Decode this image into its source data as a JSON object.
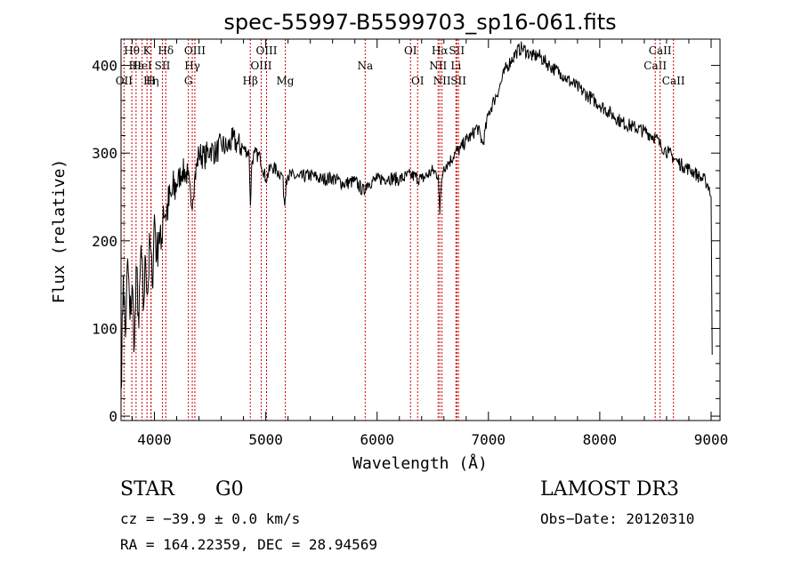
{
  "chart_data": {
    "type": "line",
    "title": "spec-55997-B5599703_sp16-061.fits",
    "xlabel": "Wavelength (Å)",
    "ylabel": "Flux (relative)",
    "xlim": [
      3700,
      9080
    ],
    "ylim": [
      -5,
      430
    ],
    "xticks": [
      4000,
      5000,
      6000,
      7000,
      8000,
      9000
    ],
    "yticks": [
      0,
      100,
      200,
      300,
      400
    ],
    "series": [
      {
        "name": "flux",
        "x": [
          3700,
          3720,
          3740,
          3760,
          3780,
          3800,
          3820,
          3840,
          3860,
          3880,
          3900,
          3920,
          3940,
          3960,
          3980,
          4000,
          4020,
          4040,
          4060,
          4080,
          4100,
          4150,
          4200,
          4250,
          4300,
          4330,
          4360,
          4400,
          4450,
          4500,
          4550,
          4600,
          4650,
          4700,
          4750,
          4800,
          4850,
          4862,
          4875,
          4900,
          4950,
          5000,
          5050,
          5100,
          5150,
          5170,
          5183,
          5200,
          5300,
          5400,
          5500,
          5600,
          5700,
          5800,
          5890,
          5900,
          6000,
          6100,
          6200,
          6300,
          6400,
          6500,
          6550,
          6563,
          6580,
          6600,
          6650,
          6700,
          6750,
          6800,
          6850,
          6900,
          6950,
          7000,
          7050,
          7100,
          7150,
          7200,
          7250,
          7300,
          7350,
          7400,
          7450,
          7500,
          7550,
          7600,
          7650,
          7700,
          7800,
          7900,
          8000,
          8100,
          8200,
          8300,
          8400,
          8500,
          8540,
          8580,
          8620,
          8660,
          8700,
          8750,
          8800,
          8850,
          8900,
          8950,
          8980,
          9000,
          9010
        ],
        "y": [
          30,
          160,
          90,
          180,
          110,
          150,
          80,
          170,
          100,
          195,
          120,
          180,
          140,
          200,
          150,
          230,
          180,
          210,
          190,
          240,
          230,
          250,
          265,
          280,
          275,
          240,
          270,
          300,
          295,
          305,
          300,
          310,
          305,
          315,
          310,
          305,
          300,
          240,
          290,
          300,
          295,
          270,
          285,
          280,
          275,
          240,
          270,
          275,
          272,
          275,
          270,
          272,
          265,
          268,
          255,
          265,
          270,
          272,
          270,
          275,
          270,
          280,
          275,
          230,
          270,
          285,
          290,
          300,
          305,
          315,
          320,
          330,
          310,
          345,
          360,
          375,
          395,
          405,
          415,
          420,
          415,
          410,
          412,
          405,
          400,
          395,
          392,
          385,
          375,
          365,
          355,
          345,
          335,
          330,
          325,
          318,
          310,
          305,
          300,
          295,
          290,
          285,
          282,
          278,
          272,
          268,
          262,
          250,
          70
        ]
      }
    ],
    "lines": [
      {
        "label": "Hθ",
        "x": 3797,
        "row": 1
      },
      {
        "label": "OII",
        "x": 3727,
        "row": 3
      },
      {
        "label": "Hε",
        "x": 3835,
        "row": 2
      },
      {
        "label": "HeI",
        "x": 3889,
        "row": 2
      },
      {
        "label": "Hη",
        "x": 3970,
        "row": 3
      },
      {
        "label": "K",
        "x": 3933,
        "row": 1
      },
      {
        "label": "H",
        "x": 3968,
        "row": 3
      },
      {
        "label": "SII",
        "x": 4072,
        "row": 2
      },
      {
        "label": "Hδ",
        "x": 4102,
        "row": 1
      },
      {
        "label": "G",
        "x": 4305,
        "row": 3
      },
      {
        "label": "Hγ",
        "x": 4340,
        "row": 2
      },
      {
        "label": "OIII",
        "x": 4363,
        "row": 1
      },
      {
        "label": "Hβ",
        "x": 4861,
        "row": 3
      },
      {
        "label": "OIII",
        "x": 4959,
        "row": 2
      },
      {
        "label": "OIII",
        "x": 5007,
        "row": 1
      },
      {
        "label": "Mg",
        "x": 5175,
        "row": 3
      },
      {
        "label": "Na",
        "x": 5893,
        "row": 2
      },
      {
        "label": "OI",
        "x": 6300,
        "row": 1
      },
      {
        "label": "OI",
        "x": 6364,
        "row": 3
      },
      {
        "label": "NII",
        "x": 6548,
        "row": 2
      },
      {
        "label": "Hα",
        "x": 6563,
        "row": 1
      },
      {
        "label": "NII",
        "x": 6583,
        "row": 3
      },
      {
        "label": "SII",
        "x": 6716,
        "row": 1
      },
      {
        "label": "Li",
        "x": 6708,
        "row": 2
      },
      {
        "label": "SII",
        "x": 6731,
        "row": 3
      },
      {
        "label": "CaII",
        "x": 8498,
        "row": 2
      },
      {
        "label": "CaII",
        "x": 8542,
        "row": 1
      },
      {
        "label": "CaII",
        "x": 8662,
        "row": 3
      }
    ]
  },
  "info": {
    "class": "STAR",
    "subclass": "G0",
    "survey": "LAMOST DR3",
    "cz": "cz = −39.9 ± 0.0 km/s",
    "obs_date": "Obs−Date: 20120310",
    "radec": "RA = 164.22359, DEC =  28.94569"
  },
  "colors": {
    "line_marker": "#cc0000",
    "spectrum": "#000000"
  }
}
